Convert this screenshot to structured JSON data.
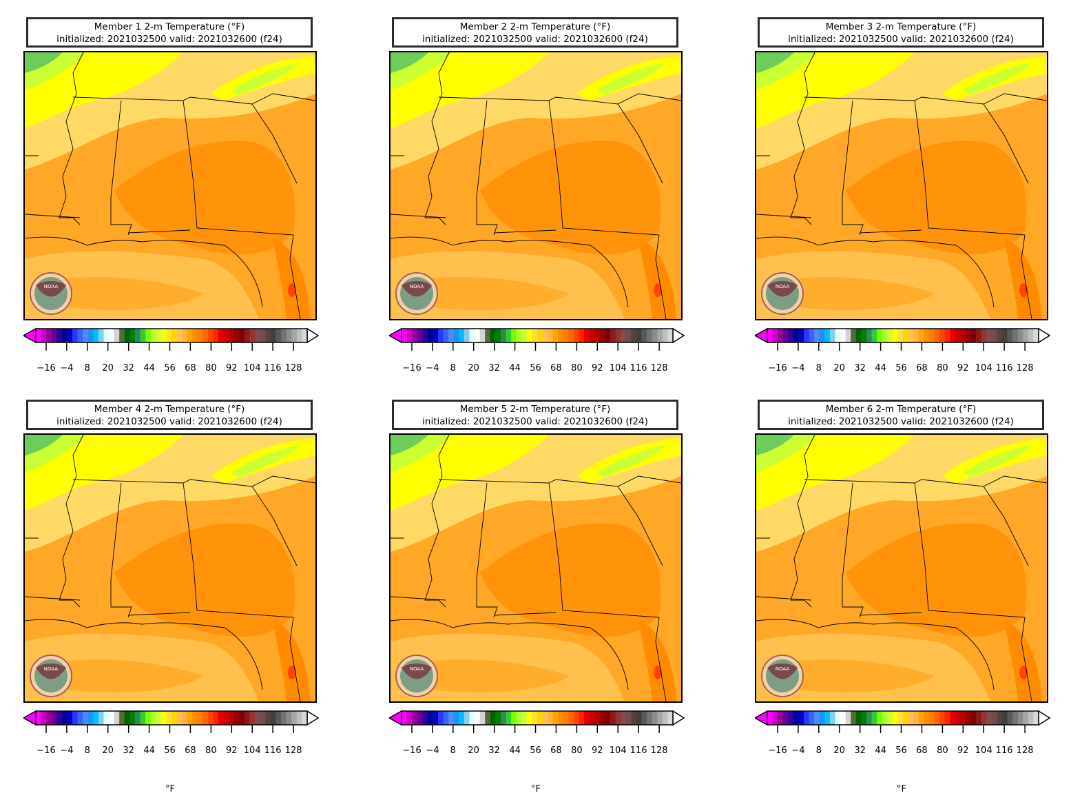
{
  "panels": [
    {
      "title_line1": "Member 1 2-m Temperature (°F)",
      "title_line2": "initialized: 2021032500 valid: 2021032600 (f24)",
      "unit": ""
    },
    {
      "title_line1": "Member 2 2-m Temperature (°F)",
      "title_line2": "initialized: 2021032500 valid: 2021032600 (f24)",
      "unit": ""
    },
    {
      "title_line1": "Member 3 2-m Temperature (°F)",
      "title_line2": "initialized: 2021032500 valid: 2021032600 (f24)",
      "unit": ""
    },
    {
      "title_line1": "Member 4 2-m Temperature (°F)",
      "title_line2": "initialized: 2021032500 valid: 2021032600 (f24)",
      "unit": "°F"
    },
    {
      "title_line1": "Member 5 2-m Temperature (°F)",
      "title_line2": "initialized: 2021032500 valid: 2021032600 (f24)",
      "unit": "°F"
    },
    {
      "title_line1": "Member 6 2-m Temperature (°F)",
      "title_line2": "initialized: 2021032500 valid: 2021032600 (f24)",
      "unit": "°F"
    }
  ],
  "colorbar": {
    "tick_labels": [
      "−16",
      "−4",
      "8",
      "20",
      "32",
      "44",
      "56",
      "68",
      "80",
      "92",
      "104",
      "116",
      "128"
    ],
    "tick_values": [
      -16,
      -4,
      8,
      20,
      32,
      44,
      56,
      68,
      80,
      92,
      104,
      116,
      128
    ],
    "range": [
      -22,
      136
    ],
    "colors": [
      "#ff00ff",
      "#cc00cc",
      "#990099",
      "#660099",
      "#330099",
      "#000099",
      "#0000cc",
      "#3333ff",
      "#3366ff",
      "#4d8cff",
      "#1e90ff",
      "#00bfff",
      "#87ceeb",
      "#e0ffff",
      "#ffffff",
      "#d3d3d3",
      "#556b2f",
      "#006400",
      "#008000",
      "#2e8b57",
      "#32cd32",
      "#7cfc00",
      "#adff2f",
      "#ccff33",
      "#ffff00",
      "#ffe135",
      "#ffd700",
      "#ffc04d",
      "#ffb347",
      "#ffa500",
      "#ff8c00",
      "#ff7f00",
      "#ff6600",
      "#ff4500",
      "#ff2400",
      "#e60000",
      "#cc0000",
      "#b30000",
      "#990000",
      "#800000",
      "#8b1a1a",
      "#993333",
      "#804d4d",
      "#734d4d",
      "#5a4040",
      "#404040",
      "#595959",
      "#737373",
      "#8c8c8c",
      "#a6a6a6",
      "#bfbfbf",
      "#d9d9d9"
    ]
  },
  "map_colors": {
    "hot": "#ff8c00",
    "warm": "#ffa726",
    "mild": "#ffc04d",
    "cool": "#ffd966",
    "yellow": "#ffff00",
    "lime": "#ccff33",
    "green": "#6dcc5a",
    "dkgreen": "#3cb371",
    "red": "#ff4500"
  },
  "logo_text": "NOAA"
}
